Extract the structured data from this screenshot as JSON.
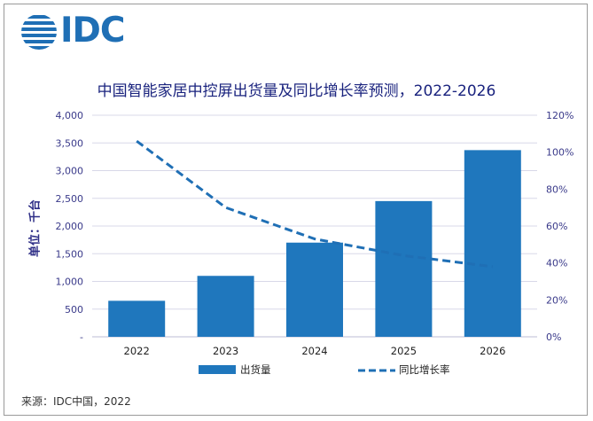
{
  "brand": {
    "name": "IDC",
    "color": "#1f6fb5"
  },
  "chart_data": {
    "type": "bar+line",
    "title": "中国智能家居中控屏出货量及同比增长率预测，2022-2026",
    "ylabel": "单位：千台",
    "categories": [
      "2022",
      "2023",
      "2024",
      "2025",
      "2026"
    ],
    "series": [
      {
        "name": "出货量",
        "type": "bar",
        "axis": "left",
        "color": "#1f77bd",
        "values": [
          650,
          1100,
          1700,
          2450,
          3370
        ]
      },
      {
        "name": "同比增长率",
        "type": "line",
        "style": "dashed",
        "axis": "right",
        "color": "#1f6fb5",
        "values": [
          106,
          70,
          53,
          44,
          38
        ]
      }
    ],
    "y_left": {
      "min": 0,
      "max": 4000,
      "step": 500,
      "ticks": [
        "-",
        "500",
        "1,000",
        "1,500",
        "2,000",
        "2,500",
        "3,000",
        "3,500",
        "4,000"
      ]
    },
    "y_right": {
      "min": 0,
      "max": 120,
      "step": 20,
      "ticks": [
        "0%",
        "20%",
        "40%",
        "60%",
        "80%",
        "100%",
        "120%"
      ]
    },
    "grid": true,
    "legend_position": "bottom"
  },
  "source": "来源：IDC中国，2022"
}
